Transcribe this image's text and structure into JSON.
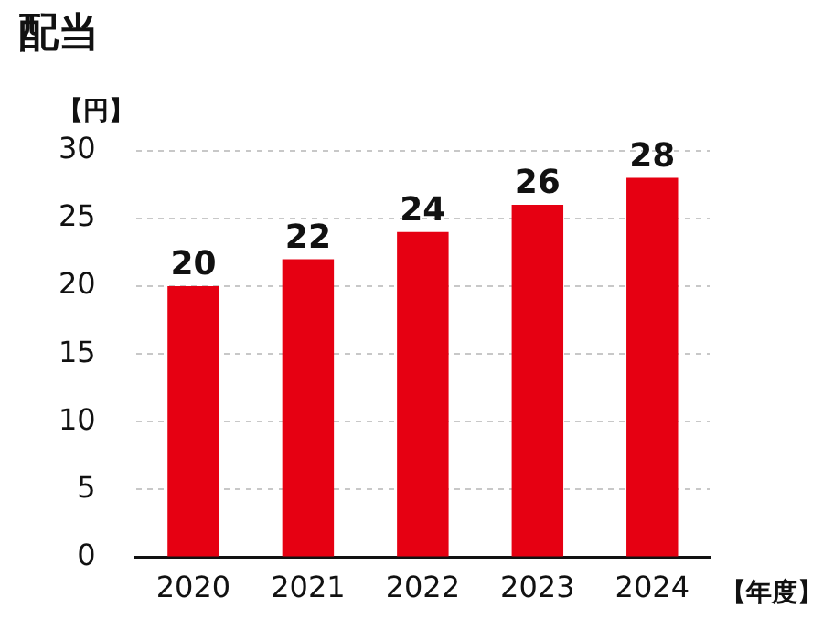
{
  "chart_data": {
    "type": "bar",
    "title": "配当",
    "ylabel": "【円】",
    "xlabel": "【年度】",
    "categories": [
      "2020",
      "2021",
      "2022",
      "2023",
      "2024"
    ],
    "values": [
      20,
      22,
      24,
      26,
      28
    ],
    "color": "#e60012",
    "ylim": [
      0,
      30
    ],
    "yticks": [
      0,
      5,
      10,
      15,
      20,
      25,
      30
    ],
    "grid": "y",
    "data_labels": true
  }
}
